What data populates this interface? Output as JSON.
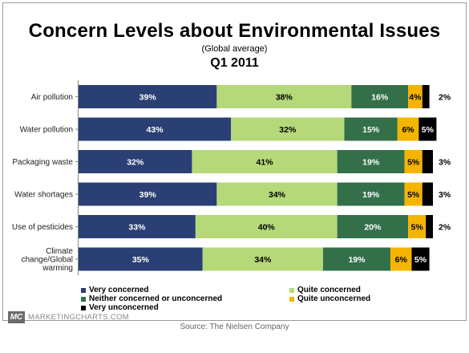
{
  "chart_data": {
    "type": "bar",
    "orientation": "horizontal",
    "stacked": true,
    "title": "Concern Levels about Environmental Issues",
    "subtitle": "(Global average)",
    "period": "Q1 2011",
    "categories": [
      "Air pollution",
      "Water pollution",
      "Packaging waste",
      "Water shortages",
      "Use of pesticides",
      "Climate change/Global warming"
    ],
    "category_lines": [
      [
        "Air pollution"
      ],
      [
        "Water pollution"
      ],
      [
        "Packaging waste"
      ],
      [
        "Water shortages"
      ],
      [
        "Use of pesticides"
      ],
      [
        "Climate",
        "change/Global",
        "warming"
      ]
    ],
    "series": [
      {
        "name": "Very concerned",
        "values": [
          39,
          43,
          32,
          39,
          33,
          35
        ],
        "color": "#2a3f73",
        "label_color": "#ffffff"
      },
      {
        "name": "Quite concerned",
        "values": [
          38,
          32,
          41,
          34,
          40,
          34
        ],
        "color": "#b5d878",
        "label_color": "#000000"
      },
      {
        "name": "Neither concerned or unconcerned",
        "values": [
          16,
          15,
          19,
          19,
          20,
          19
        ],
        "color": "#33704a",
        "label_color": "#ffffff"
      },
      {
        "name": "Quite unconcerned",
        "values": [
          4,
          6,
          5,
          5,
          5,
          6
        ],
        "color": "#f5b400",
        "label_color": "#000000"
      },
      {
        "name": "Very unconcerned",
        "values": [
          2,
          5,
          3,
          3,
          2,
          5
        ],
        "color": "#000000",
        "label_color": "#ffffff"
      }
    ],
    "value_suffix": "%",
    "xlim": [
      0,
      100
    ],
    "grid": false,
    "legend_position": "bottom"
  },
  "footer": {
    "brand_mark": "MC",
    "brand_text": "MARKETINGCHARTS.COM",
    "source": "Source: The Nielsen Company"
  }
}
